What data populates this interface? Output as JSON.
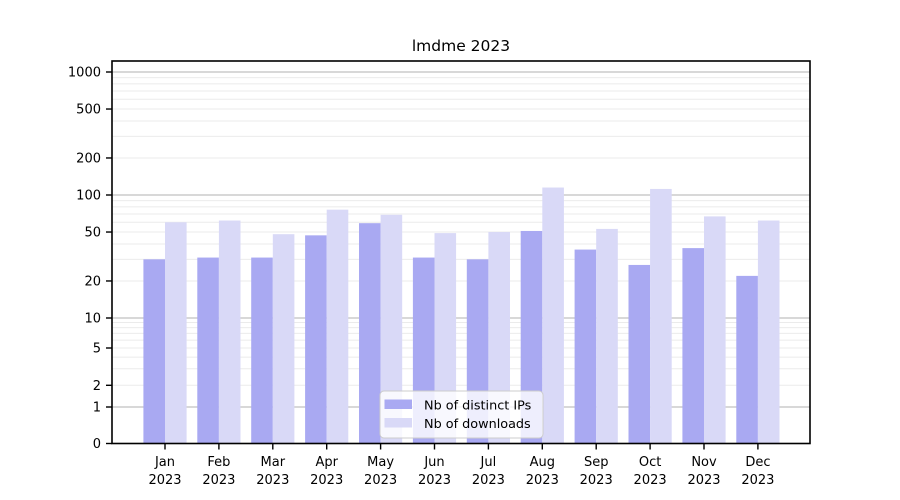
{
  "chart_data": {
    "type": "bar",
    "title": "lmdme 2023",
    "categories": [
      "Jan",
      "Feb",
      "Mar",
      "Apr",
      "May",
      "Jun",
      "Jul",
      "Aug",
      "Sep",
      "Oct",
      "Nov",
      "Dec"
    ],
    "tick_year": "2023",
    "series": [
      {
        "name": "Nb of distinct IPs",
        "color": "#a9a9f2",
        "values": [
          30,
          31,
          31,
          47,
          59,
          31,
          30,
          51,
          36,
          27,
          37,
          22
        ]
      },
      {
        "name": "Nb of downloads",
        "color": "#d9d9f7",
        "values": [
          60,
          62,
          48,
          76,
          69,
          49,
          50,
          115,
          53,
          112,
          67,
          62
        ]
      }
    ],
    "yscale": "symlog",
    "yticks": [
      0,
      1,
      2,
      5,
      10,
      20,
      50,
      100,
      200,
      500,
      1000
    ],
    "ylim": [
      0,
      1200
    ],
    "grid": true,
    "legend_position": "lower center",
    "colors": {
      "grid_major": "#b0b0b0",
      "grid_minor": "#ebebeb",
      "axis": "#000000",
      "legend_border": "#cccccc",
      "legend_bg": "#ffffff"
    }
  }
}
